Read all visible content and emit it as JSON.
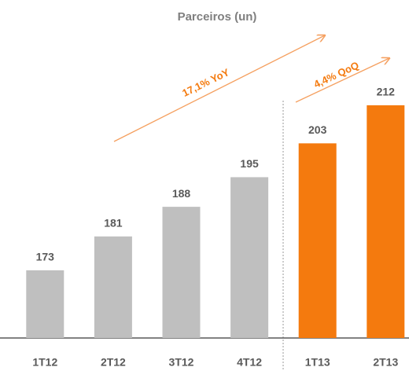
{
  "chart_data": {
    "type": "bar",
    "title": "Parceiros (un)",
    "categories": [
      "1T12",
      "2T12",
      "3T12",
      "4T12",
      "1T13",
      "2T13"
    ],
    "values": [
      173,
      181,
      188,
      195,
      203,
      212
    ],
    "colors": [
      "#bfbfbf",
      "#bfbfbf",
      "#bfbfbf",
      "#bfbfbf",
      "#f47a0e",
      "#f47a0e"
    ],
    "ylim": [
      157,
      230
    ],
    "annotations": [
      "17,1% YoY",
      "4,4% QoQ"
    ]
  }
}
